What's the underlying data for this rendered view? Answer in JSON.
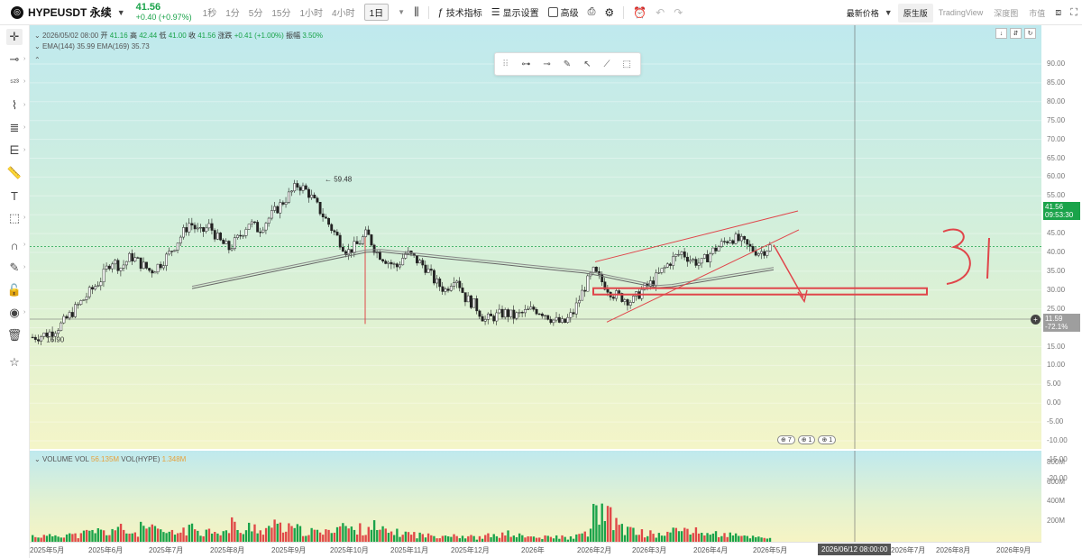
{
  "header": {
    "symbol": "HYPEUSDT 永续",
    "price": "41.56",
    "change": "+0.40 (+0.97%)",
    "timeframes": [
      "1秒",
      "1分",
      "5分",
      "15分",
      "1小时",
      "4小时",
      "1日"
    ],
    "active_timeframe": "1日",
    "buttons": [
      "技术指标",
      "显示设置",
      "高级"
    ],
    "right_menu": {
      "price_type": "最新价格",
      "views": [
        "原生版",
        "TradingView",
        "深度图",
        "市值"
      ]
    }
  },
  "legend": {
    "date": "2026/05/02 08:00",
    "open_label": "开",
    "open": "41.16",
    "high_label": "高",
    "high": "42.44",
    "low_label": "低",
    "low": "41.00",
    "close_label": "收",
    "close": "41.56",
    "change_label": "涨跌",
    "change": "+0.41 (+1.00%)",
    "amp_label": "振幅",
    "amp": "3.50%",
    "ema": "EMA(144)",
    "ema_val": "35.99",
    "ema2": "EMA(169)",
    "ema2_val": "35.73",
    "vol_label": "VOLUME",
    "vol_title": "VOL",
    "vol_val": "56.135M",
    "vol2_title": "VOL(HYPE)",
    "vol2_val": "1.348M"
  },
  "annotations": {
    "high_marker": "59.48",
    "low_marker": "16.90",
    "handwritten": "31"
  },
  "tags": {
    "last_price": "41.56",
    "last_countdown": "09:53:30",
    "cursor_price": "11.59",
    "cursor_pct": "-72.1%",
    "cursor_time": "2026/06/12 08:00:00",
    "badge_a": "7",
    "badge_b": "1",
    "badge_c": "1"
  },
  "colors": {
    "up": "#1aa34a",
    "down": "#e04848",
    "draw": "#e0454a",
    "ema": "#888888"
  },
  "chart_data": {
    "type": "candlestick",
    "y_ticks": [
      "90.00",
      "85.00",
      "80.00",
      "75.00",
      "70.00",
      "65.00",
      "60.00",
      "55.00",
      "50.00",
      "45.00",
      "40.00",
      "35.00",
      "30.00",
      "25.00",
      "20.00",
      "15.00",
      "10.00",
      "5.00",
      "0.00",
      "-5.00",
      "-10.00",
      "-15.00",
      "-20.00"
    ],
    "vol_ticks": [
      "800M",
      "600M",
      "400M",
      "200M"
    ],
    "x_ticks": [
      "2025年5月",
      "2025年6月",
      "2025年7月",
      "2025年8月",
      "2025年9月",
      "2025年10月",
      "2025年11月",
      "2025年12月",
      "2026年",
      "2026年2月",
      "2026年3月",
      "2026年4月",
      "2026年5月",
      "2026年7月",
      "2026年8月",
      "2026年9月"
    ],
    "close_path": [
      17.5,
      18,
      19,
      21,
      24,
      27,
      30,
      33,
      38,
      36,
      39,
      37,
      35,
      37,
      40,
      44,
      48,
      45,
      47,
      43,
      41,
      44,
      48,
      46,
      49,
      52,
      55,
      58,
      56,
      52,
      48,
      44,
      40,
      42,
      45,
      40,
      38,
      36,
      40,
      38,
      36,
      32,
      30,
      34,
      28,
      26,
      22,
      23,
      24,
      23,
      24,
      25,
      24,
      22,
      21,
      24,
      30,
      35,
      32,
      29,
      28,
      27,
      30,
      32,
      35,
      38,
      40,
      38,
      37,
      40,
      42,
      44,
      43,
      41,
      40,
      41.56
    ],
    "vol_path": [
      60,
      55,
      70,
      80,
      65,
      90,
      110,
      95,
      130,
      100,
      90,
      140,
      120,
      95,
      85,
      120,
      140,
      110,
      130,
      100,
      180,
      90,
      150,
      120,
      160,
      140,
      130,
      110,
      100,
      90,
      150,
      170,
      120,
      130,
      160,
      110,
      100,
      90,
      80,
      70,
      60,
      70,
      80,
      60,
      50,
      40,
      60,
      70,
      80,
      60,
      50,
      40,
      45,
      50,
      40,
      60,
      100,
      300,
      250,
      180,
      120,
      100,
      80,
      70,
      90,
      110,
      130,
      100,
      90,
      80,
      70,
      60,
      55,
      50,
      45,
      56
    ]
  }
}
